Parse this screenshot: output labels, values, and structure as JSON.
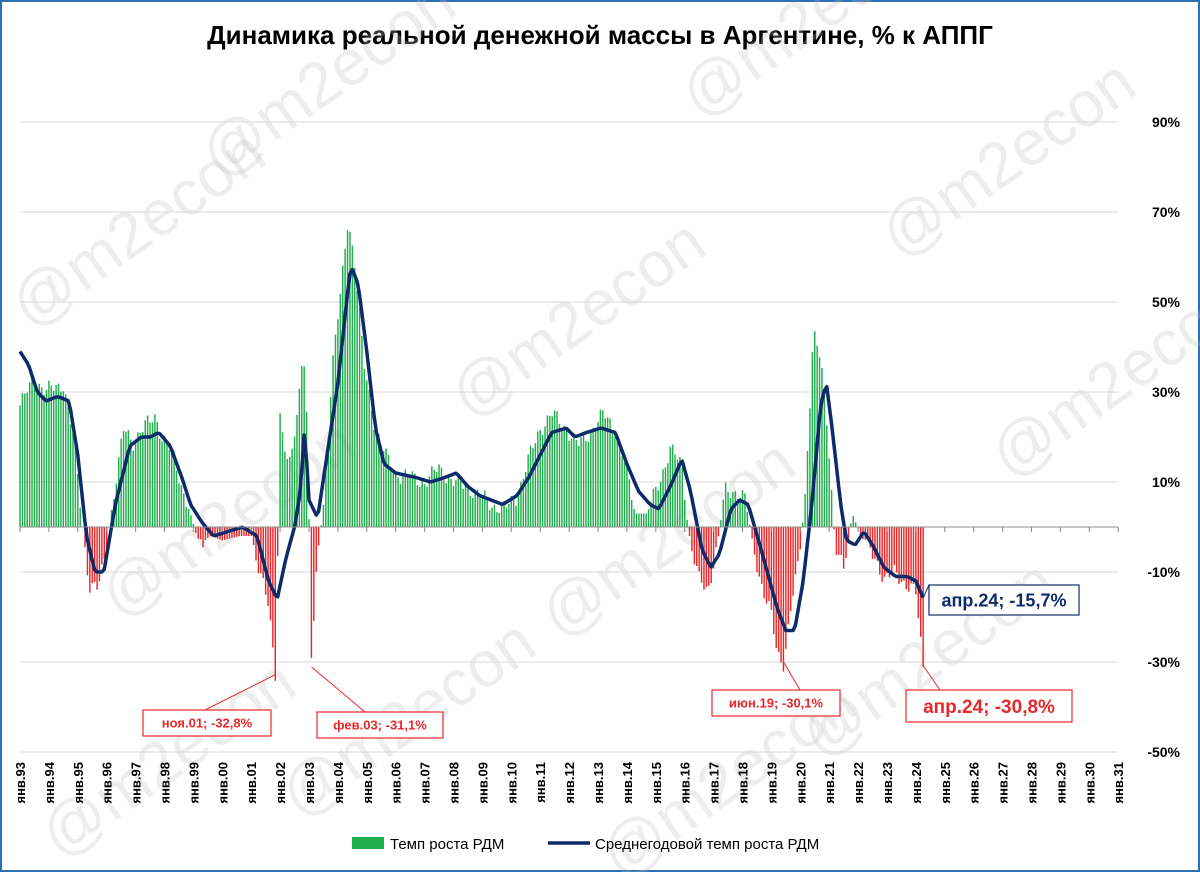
{
  "chart_data": {
    "type": "bar+line",
    "title": "Динамика реальной денежной массы в Аргентине, % к АППГ",
    "y_ticks": [
      "90%",
      "70%",
      "50%",
      "30%",
      "10%",
      "-10%",
      "-30%",
      "-50%"
    ],
    "y_tick_values": [
      90,
      70,
      50,
      30,
      10,
      -10,
      -30,
      -50
    ],
    "ylim": [
      -50,
      90
    ],
    "x_tick_labels": [
      "янв.93",
      "янв.94",
      "янв.95",
      "янв.96",
      "янв.97",
      "янв.98",
      "янв.99",
      "янв.00",
      "янв.01",
      "янв.02",
      "янв.03",
      "янв.04",
      "янв.05",
      "янв.06",
      "янв.07",
      "янв.08",
      "янв.09",
      "янв.10",
      "янв.11",
      "янв.12",
      "янв.13",
      "янв.14",
      "янв.15",
      "янв.16",
      "янв.17",
      "янв.18",
      "янв.19",
      "янв.20",
      "янв.21",
      "янв.22",
      "янв.23",
      "янв.24",
      "янв.25",
      "янв.26",
      "янв.27",
      "янв.28",
      "янв.29",
      "янв.30",
      "янв.31"
    ],
    "series": [
      {
        "name": "Темп роста РДМ",
        "kind": "bar",
        "positive_color": "#1fae4b",
        "negative_color": "#e8282b",
        "anchors": [
          [
            1993.0,
            27
          ],
          [
            1993.5,
            33
          ],
          [
            1993.9,
            30
          ],
          [
            1994.5,
            32
          ],
          [
            1994.9,
            18
          ],
          [
            1995.15,
            1
          ],
          [
            1995.4,
            -13
          ],
          [
            1995.7,
            -14
          ],
          [
            1995.9,
            -8
          ],
          [
            1996.2,
            5
          ],
          [
            1996.6,
            22
          ],
          [
            1996.9,
            19
          ],
          [
            1997.3,
            22
          ],
          [
            1997.7,
            25
          ],
          [
            1997.9,
            20
          ],
          [
            1998.3,
            16
          ],
          [
            1998.6,
            9
          ],
          [
            1998.9,
            3
          ],
          [
            1999.2,
            -4
          ],
          [
            1999.6,
            -2
          ],
          [
            2000.0,
            -3
          ],
          [
            2000.6,
            -2
          ],
          [
            2001.0,
            -2
          ],
          [
            2001.3,
            -10
          ],
          [
            2001.6,
            -18
          ],
          [
            2001.84,
            -32.8
          ],
          [
            2002.0,
            25
          ],
          [
            2002.3,
            12
          ],
          [
            2002.6,
            25
          ],
          [
            2002.8,
            42
          ],
          [
            2002.95,
            20
          ],
          [
            2003.09,
            -31.1
          ],
          [
            2003.3,
            -6
          ],
          [
            2003.5,
            5
          ],
          [
            2003.8,
            35
          ],
          [
            2004.1,
            52
          ],
          [
            2004.35,
            69
          ],
          [
            2004.6,
            58
          ],
          [
            2004.9,
            36
          ],
          [
            2005.3,
            22
          ],
          [
            2005.7,
            15
          ],
          [
            2006.0,
            12
          ],
          [
            2006.5,
            11
          ],
          [
            2007.0,
            10
          ],
          [
            2007.5,
            13
          ],
          [
            2008.0,
            10
          ],
          [
            2008.5,
            9
          ],
          [
            2008.9,
            7
          ],
          [
            2009.3,
            5
          ],
          [
            2009.8,
            4
          ],
          [
            2010.2,
            7
          ],
          [
            2010.6,
            15
          ],
          [
            2011.0,
            22
          ],
          [
            2011.4,
            25
          ],
          [
            2011.9,
            22
          ],
          [
            2012.3,
            18
          ],
          [
            2012.7,
            21
          ],
          [
            2013.2,
            25
          ],
          [
            2013.6,
            22
          ],
          [
            2014.0,
            12
          ],
          [
            2014.3,
            3
          ],
          [
            2014.7,
            3
          ],
          [
            2015.1,
            10
          ],
          [
            2015.5,
            17
          ],
          [
            2015.9,
            14
          ],
          [
            2016.2,
            -4
          ],
          [
            2016.5,
            -12
          ],
          [
            2016.8,
            -14
          ],
          [
            2017.1,
            -5
          ],
          [
            2017.4,
            8
          ],
          [
            2017.8,
            8
          ],
          [
            2018.1,
            6
          ],
          [
            2018.4,
            -5
          ],
          [
            2018.7,
            -14
          ],
          [
            2019.0,
            -20
          ],
          [
            2019.2,
            -28
          ],
          [
            2019.43,
            -30.1
          ],
          [
            2019.7,
            -17
          ],
          [
            2019.9,
            -10
          ],
          [
            2020.15,
            5
          ],
          [
            2020.45,
            43
          ],
          [
            2020.7,
            37
          ],
          [
            2020.95,
            22
          ],
          [
            2021.2,
            -4
          ],
          [
            2021.5,
            -10
          ],
          [
            2021.8,
            3
          ],
          [
            2022.1,
            -2
          ],
          [
            2022.4,
            -5
          ],
          [
            2022.7,
            -8
          ],
          [
            2022.9,
            -12
          ],
          [
            2023.3,
            -10
          ],
          [
            2023.7,
            -13
          ],
          [
            2024.0,
            -15
          ],
          [
            2024.25,
            -30.8
          ]
        ]
      },
      {
        "name": "Среднегодовой темп роста РДМ",
        "kind": "line",
        "color": "#0d2b6b",
        "anchors": [
          [
            1993.0,
            39
          ],
          [
            1993.3,
            36
          ],
          [
            1993.6,
            30
          ],
          [
            1993.9,
            28
          ],
          [
            1994.3,
            29
          ],
          [
            1994.7,
            28
          ],
          [
            1995.0,
            16
          ],
          [
            1995.3,
            -2
          ],
          [
            1995.6,
            -10
          ],
          [
            1995.9,
            -10
          ],
          [
            1996.3,
            5
          ],
          [
            1996.8,
            18
          ],
          [
            1997.2,
            20
          ],
          [
            1997.5,
            20
          ],
          [
            1997.8,
            21
          ],
          [
            1998.2,
            18
          ],
          [
            1998.6,
            11
          ],
          [
            1998.9,
            5
          ],
          [
            1999.3,
            1
          ],
          [
            1999.7,
            -2
          ],
          [
            2000.2,
            -1
          ],
          [
            2000.7,
            0
          ],
          [
            2001.2,
            -2
          ],
          [
            2001.6,
            -12
          ],
          [
            2001.9,
            -16
          ],
          [
            2002.2,
            -7
          ],
          [
            2002.5,
            0
          ],
          [
            2002.7,
            8
          ],
          [
            2002.85,
            22
          ],
          [
            2003.0,
            6
          ],
          [
            2003.3,
            2
          ],
          [
            2003.6,
            15
          ],
          [
            2004.0,
            32
          ],
          [
            2004.3,
            50
          ],
          [
            2004.45,
            58
          ],
          [
            2004.7,
            54
          ],
          [
            2005.0,
            39
          ],
          [
            2005.3,
            22
          ],
          [
            2005.6,
            14
          ],
          [
            2006.0,
            12
          ],
          [
            2006.7,
            11
          ],
          [
            2007.2,
            10
          ],
          [
            2007.7,
            11
          ],
          [
            2008.1,
            12
          ],
          [
            2008.5,
            9
          ],
          [
            2008.9,
            7
          ],
          [
            2009.3,
            6
          ],
          [
            2009.7,
            5
          ],
          [
            2010.2,
            7
          ],
          [
            2010.6,
            11
          ],
          [
            2011.0,
            16
          ],
          [
            2011.4,
            21
          ],
          [
            2011.9,
            22
          ],
          [
            2012.2,
            20
          ],
          [
            2012.6,
            21
          ],
          [
            2013.1,
            22
          ],
          [
            2013.6,
            21
          ],
          [
            2014.0,
            14
          ],
          [
            2014.4,
            8
          ],
          [
            2014.8,
            5
          ],
          [
            2015.1,
            4
          ],
          [
            2015.5,
            9
          ],
          [
            2015.9,
            15
          ],
          [
            2016.2,
            8
          ],
          [
            2016.6,
            -5
          ],
          [
            2016.9,
            -9
          ],
          [
            2017.2,
            -6
          ],
          [
            2017.6,
            4
          ],
          [
            2017.9,
            6
          ],
          [
            2018.2,
            5
          ],
          [
            2018.6,
            -4
          ],
          [
            2018.9,
            -11
          ],
          [
            2019.2,
            -18
          ],
          [
            2019.5,
            -23
          ],
          [
            2019.8,
            -23
          ],
          [
            2020.1,
            -12
          ],
          [
            2020.4,
            5
          ],
          [
            2020.7,
            27
          ],
          [
            2020.9,
            32
          ],
          [
            2021.1,
            22
          ],
          [
            2021.4,
            5
          ],
          [
            2021.6,
            -3
          ],
          [
            2021.9,
            -4
          ],
          [
            2022.2,
            -1
          ],
          [
            2022.5,
            -4
          ],
          [
            2022.9,
            -9
          ],
          [
            2023.3,
            -11
          ],
          [
            2023.7,
            -11
          ],
          [
            2024.0,
            -12
          ],
          [
            2024.25,
            -15.7
          ]
        ]
      }
    ],
    "callouts": [
      {
        "text": "ноя.01; -32,8%",
        "color": "#e8282b"
      },
      {
        "text": "фев.03; -31,1%",
        "color": "#e8282b"
      },
      {
        "text": "июн.19; -30,1%",
        "color": "#e8282b"
      },
      {
        "text": "апр.24; -30,8%",
        "color": "#e8282b"
      },
      {
        "text": "апр.24; -15,7%",
        "color": "#0d2b6b"
      }
    ],
    "legend_position": "bottom",
    "grid": true
  },
  "watermark": "@m2econ"
}
